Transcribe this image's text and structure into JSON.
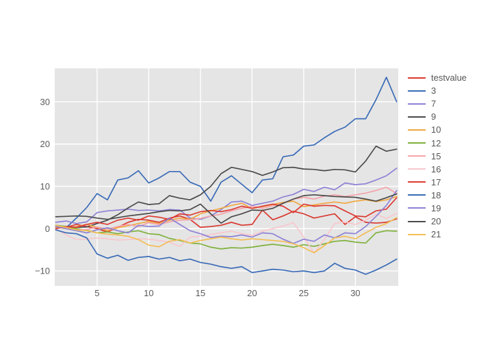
{
  "chart_data": {
    "type": "line",
    "title": "",
    "xlabel": "",
    "ylabel": "",
    "grid": true,
    "legend_position": "right",
    "plot_bg_color": "#e5e5e5",
    "grid_color": "#ffffff",
    "tick_text_color": "#595959",
    "legend_text_color": "#555555",
    "page_bg_color": "#ffffff",
    "xlim": [
      0.9,
      34.15
    ],
    "ylim": [
      -13.55,
      37.9
    ],
    "xticks": [
      5,
      10,
      15,
      20,
      25,
      30
    ],
    "yticks": [
      -10,
      0,
      10,
      20,
      30
    ],
    "xtick_labels": [
      "5",
      "10",
      "15",
      "20",
      "25",
      "30"
    ],
    "ytick_labels": [
      "−10",
      "0",
      "10",
      "20",
      "30"
    ],
    "x": [
      1,
      2,
      3,
      4,
      5,
      6,
      7,
      8,
      9,
      10,
      11,
      12,
      13,
      14,
      15,
      16,
      17,
      18,
      19,
      20,
      21,
      22,
      23,
      24,
      25,
      26,
      27,
      28,
      29,
      30,
      31,
      32,
      33,
      34
    ],
    "series": [
      {
        "name": "testvalue",
        "color": "#d9392f",
        "values": [
          0.5,
          0.3,
          1,
          0.5,
          0,
          -0.8,
          0.3,
          1.5,
          2.2,
          2,
          1.5,
          2.5,
          3,
          2.2,
          0.3,
          0.5,
          0.8,
          1.5,
          0.8,
          1,
          4.4,
          2.1,
          3,
          4.1,
          3.5,
          2.5,
          3,
          3.5,
          1,
          2.8,
          1.5,
          1.3,
          1.5,
          2.3
        ]
      },
      {
        "name": "3",
        "color": "#3a6bb7",
        "values": [
          0.3,
          0.2,
          2.5,
          5,
          8.3,
          6.8,
          11.5,
          12,
          13.7,
          10.8,
          12,
          13.5,
          13.5,
          11,
          10,
          6.5,
          11,
          12.5,
          10.5,
          8.5,
          11.5,
          11.8,
          17,
          17.4,
          19.5,
          19.8,
          21.5,
          23,
          24,
          26,
          26,
          30.5,
          35.8,
          30
        ]
      },
      {
        "name": "7",
        "color": "#8d81d6",
        "values": [
          1.5,
          1.8,
          1.2,
          1.6,
          3.8,
          4.2,
          4.4,
          4.6,
          4.3,
          4.4,
          4.2,
          4.5,
          4.4,
          2.5,
          2.2,
          3,
          4.5,
          6.3,
          6.5,
          5.5,
          6,
          6.5,
          7.5,
          8.1,
          9.3,
          8.8,
          9.8,
          9.2,
          10.8,
          10.4,
          10.6,
          11.5,
          12.5,
          14.3
        ]
      },
      {
        "name": "9",
        "color": "#4a4a4a",
        "values": [
          0.8,
          0.5,
          0.3,
          0.4,
          1.2,
          2,
          3.3,
          4.9,
          6.3,
          5.7,
          5.9,
          7.8,
          7.2,
          6.8,
          8,
          10,
          13,
          14.5,
          14,
          13.5,
          12.6,
          13.4,
          14.4,
          14.5,
          14.1,
          14,
          13.7,
          14,
          13.9,
          13.4,
          16,
          19.5,
          18.3,
          18.8
        ]
      },
      {
        "name": "10",
        "color": "#f0a73f",
        "values": [
          0.3,
          0,
          0.5,
          1,
          0.3,
          -0.5,
          0.2,
          0.7,
          1.2,
          1.7,
          1.2,
          2,
          2.5,
          2.2,
          3.5,
          4.2,
          4.8,
          5.5,
          6,
          4.8,
          5.2,
          5.7,
          6.2,
          6.5,
          5.2,
          5.6,
          6,
          6.3,
          6,
          6.5,
          6.8,
          6.4,
          6.8,
          7.6
        ]
      },
      {
        "name": "12",
        "color": "#7fb13c",
        "values": [
          0.8,
          0.5,
          0,
          -0.4,
          -1,
          -0.8,
          -1.2,
          -0.8,
          -0.5,
          -1.2,
          -1.4,
          -2.3,
          -2.8,
          -3.4,
          -3.6,
          -4.4,
          -4.8,
          -4.5,
          -4.6,
          -4.4,
          -4,
          -3.7,
          -4,
          -4.4,
          -3.8,
          -4.2,
          -3.6,
          -3,
          -2.8,
          -3.2,
          -3.4,
          -1,
          -0.5,
          -0.6
        ]
      },
      {
        "name": "15",
        "color": "#f4a3ab",
        "values": [
          0.5,
          0.2,
          -0.3,
          -0.2,
          0.4,
          -0.1,
          0.5,
          1,
          0.5,
          1.4,
          1,
          1.6,
          2,
          2.1,
          2.4,
          3,
          3.4,
          4.2,
          4.8,
          5.3,
          4.8,
          5.4,
          6,
          7,
          7.4,
          7,
          7.7,
          8,
          7.6,
          8,
          8.4,
          9,
          9.8,
          8.3
        ]
      },
      {
        "name": "16",
        "color": "#f8c7cd",
        "values": [
          0,
          -1.5,
          -2.6,
          -2.5,
          -2.2,
          -2.4,
          -2.7,
          -2.6,
          -2.4,
          -2.5,
          -2.8,
          -3.2,
          -4.2,
          -2,
          -1.8,
          -1.4,
          -1,
          -0.6,
          -1.2,
          -1.6,
          -0.6,
          0,
          0.6,
          1.4,
          -2,
          -5.8,
          -2.5,
          1.2,
          1.6,
          1,
          2,
          3.4,
          2.4,
          3.6
        ]
      },
      {
        "name": "17",
        "color": "#dc3a32",
        "values": [
          0,
          0.5,
          0.3,
          1,
          1.5,
          1,
          2,
          2.5,
          2,
          3,
          2.7,
          2.2,
          3.5,
          3.2,
          4,
          4.3,
          4,
          4.5,
          5.3,
          4.8,
          5.3,
          5.8,
          5.3,
          3.8,
          5.8,
          5.3,
          5.5,
          5.4,
          4.2,
          3,
          2.8,
          4.2,
          4.6,
          7.3
        ]
      },
      {
        "name": "18",
        "color": "#3a6bb7",
        "values": [
          -0.3,
          -1,
          -1.2,
          -2.2,
          -6,
          -7,
          -6.3,
          -7.5,
          -6.8,
          -6.6,
          -7.2,
          -6.8,
          -7.6,
          -7.2,
          -8,
          -8.4,
          -9,
          -9.4,
          -9,
          -10.4,
          -10,
          -9.6,
          -9.8,
          -10.2,
          -10,
          -10.4,
          -10,
          -8.2,
          -9.4,
          -9.8,
          -10.8,
          -9.8,
          -8.6,
          -7.2
        ]
      },
      {
        "name": "19",
        "color": "#8d81d6",
        "values": [
          0.5,
          0,
          -0.5,
          -1,
          -0.3,
          0.2,
          -0.5,
          -1,
          0.8,
          0.5,
          0.6,
          2.5,
          1,
          -0.5,
          -1.2,
          -2.1,
          -1.8,
          -1.9,
          -1.5,
          -2,
          -1,
          -1.2,
          -2.5,
          -3.5,
          -2.5,
          -3,
          -1.5,
          -2.2,
          -1,
          -1.2,
          0.5,
          2.9,
          5.5,
          9
        ]
      },
      {
        "name": "20",
        "color": "#4a4a4a",
        "values": [
          2.8,
          2.9,
          3,
          2.9,
          2.5,
          2.2,
          2.6,
          3,
          3.3,
          3.6,
          4,
          4.3,
          4.2,
          4.5,
          5.8,
          3.5,
          1.3,
          2.8,
          3.5,
          4.4,
          4.3,
          4.8,
          6,
          7,
          7.8,
          8,
          7.8,
          7.6,
          7.5,
          7.4,
          7,
          6.5,
          7.3,
          8.2
        ]
      },
      {
        "name": "21",
        "color": "#f3bd55",
        "values": [
          0.8,
          0.3,
          -0.3,
          -0.5,
          -1,
          -1.3,
          -1.5,
          -1.8,
          -2.6,
          -3.9,
          -4.3,
          -3,
          -2.6,
          -3.4,
          -2.8,
          -2.4,
          -2,
          -2.4,
          -2.7,
          -2.4,
          -2.6,
          -2.8,
          -3,
          -3.6,
          -4.5,
          -5.7,
          -4,
          -2.2,
          -1.8,
          -2.4,
          -1,
          0.3,
          1.2,
          2.6
        ]
      }
    ]
  }
}
